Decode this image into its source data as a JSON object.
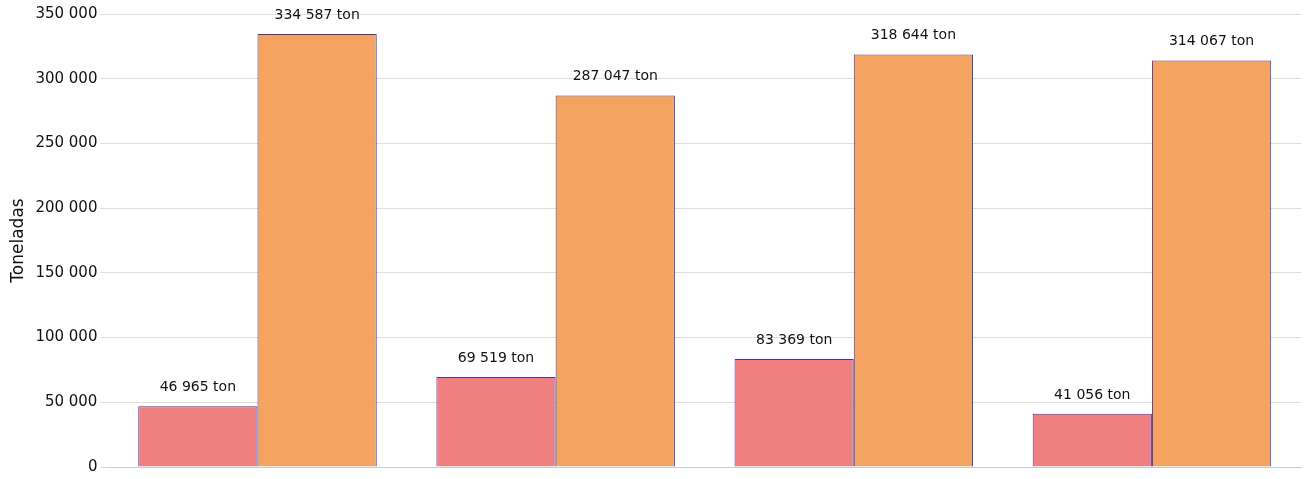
{
  "chart_data": {
    "type": "bar",
    "ylabel": "Toneladas",
    "categories": [
      null,
      null,
      null,
      null
    ],
    "series": [
      {
        "color": "#f08080",
        "values": [
          46965,
          69519,
          83369,
          41056
        ],
        "value_labels": [
          "46 965 ton",
          "69 519 ton",
          "83 369 ton",
          "41 056 ton"
        ]
      },
      {
        "color": "#f4a460",
        "values": [
          334587,
          287047,
          318644,
          314067
        ],
        "value_labels": [
          "334 587 ton",
          "287 047 ton",
          "318 644 ton",
          "314 067 ton"
        ]
      }
    ],
    "ylim": [
      0,
      350000
    ],
    "yticks": [
      {
        "value": 0,
        "label": "0"
      },
      {
        "value": 50000,
        "label": "50 000"
      },
      {
        "value": 100000,
        "label": "100 000"
      },
      {
        "value": 150000,
        "label": "150 000"
      },
      {
        "value": 200000,
        "label": "200 000"
      },
      {
        "value": 250000,
        "label": "250 000"
      },
      {
        "value": 300000,
        "label": "300 000"
      },
      {
        "value": 350000,
        "label": "350 000"
      }
    ],
    "grid": "y",
    "tick_labels": "y"
  }
}
